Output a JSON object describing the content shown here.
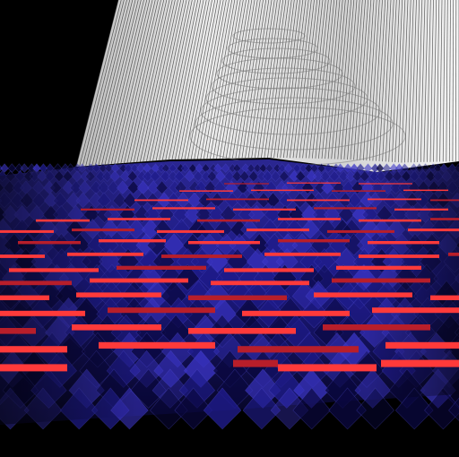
{
  "scene": {
    "background_color": "#000000",
    "sheet_light_color": "#f2f2f2",
    "sheet_dark_color": "#9a9a9a",
    "sheet_line_color": "#3a3a3a",
    "plane_deep_color": "#0a0840",
    "plane_mid_color": "#1f1c8c",
    "plane_light_color": "#3a34c4",
    "stripe_color": "#ff3a3a",
    "stripe_dark_color": "#b81e2a"
  }
}
